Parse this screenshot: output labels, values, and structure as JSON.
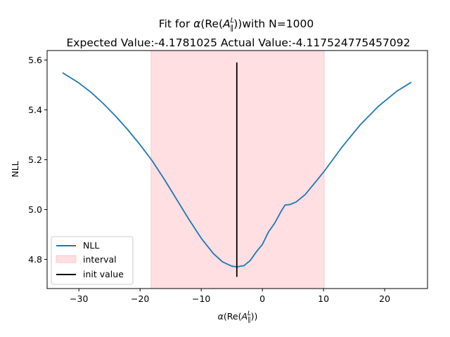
{
  "chart_data": {
    "type": "line",
    "title_line1_prefix": "Fit for ",
    "title_line1_suffix": "with N=1000",
    "title_line2": "Expected Value:-4.1781025 Actual Value:-4.117524775457092",
    "xlabel_prefix": "α(Re(",
    "xlabel_suffix": "))",
    "title_alpha": "α",
    "title_re_open": "(Re(",
    "title_re_close": "))",
    "math_A": "A",
    "math_sup": "L",
    "math_sub": "∥",
    "ylabel": "NLL",
    "xlim": [
      -35.2,
      27.0
    ],
    "ylim": [
      4.683,
      5.638
    ],
    "xticks": [
      -30,
      -20,
      -10,
      0,
      10,
      20
    ],
    "xtick_labels": [
      "−30",
      "−20",
      "−10",
      "0",
      "10",
      "20"
    ],
    "yticks": [
      4.8,
      5.0,
      5.2,
      5.4,
      5.6
    ],
    "ytick_labels": [
      "4.8",
      "5.0",
      "5.2",
      "5.4",
      "5.6"
    ],
    "interval": [
      -18.2,
      10.1
    ],
    "init_value": -4.18,
    "init_value_range": [
      4.73,
      5.59
    ],
    "series": [
      {
        "name": "NLL",
        "color": "#1f77b4",
        "x": [
          -32.6,
          -30.0,
          -28.0,
          -26.0,
          -24.0,
          -22.0,
          -20.0,
          -18.0,
          -16.0,
          -14.0,
          -12.0,
          -10.0,
          -8.0,
          -6.5,
          -5.0,
          -4.2,
          -3.0,
          -2.0,
          -1.0,
          0.0,
          1.0,
          2.0,
          3.0,
          3.7,
          4.5,
          5.5,
          7.0,
          10.0,
          13.0,
          16.0,
          19.0,
          22.0,
          24.3
        ],
        "y": [
          5.548,
          5.508,
          5.47,
          5.425,
          5.375,
          5.32,
          5.26,
          5.195,
          5.12,
          5.04,
          4.96,
          4.885,
          4.823,
          4.79,
          4.773,
          4.77,
          4.775,
          4.795,
          4.83,
          4.86,
          4.91,
          4.945,
          4.99,
          5.018,
          5.02,
          5.03,
          5.06,
          5.15,
          5.25,
          5.34,
          5.415,
          5.475,
          5.51
        ]
      }
    ],
    "legend": {
      "placement": "lower-left",
      "entries": [
        "NLL",
        "interval",
        "init value"
      ]
    },
    "colors": {
      "line": "#1f77b4",
      "interval_fill": "#ffdfe2",
      "interval_edge": "#ffc7cc",
      "init_line": "#000000"
    }
  }
}
